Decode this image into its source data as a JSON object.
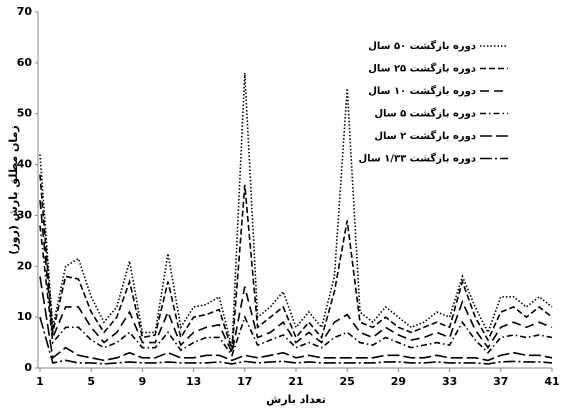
{
  "chart_data": {
    "type": "line",
    "y_label": "زمان مطلق بارش (روز)",
    "x_label": "تعداد بارش",
    "x": [
      1,
      2,
      3,
      4,
      5,
      6,
      7,
      8,
      9,
      10,
      11,
      12,
      13,
      14,
      15,
      16,
      17,
      18,
      19,
      20,
      21,
      22,
      23,
      24,
      25,
      26,
      27,
      28,
      29,
      30,
      31,
      32,
      33,
      34,
      35,
      36,
      37,
      38,
      39,
      40,
      41
    ],
    "xlim": [
      1,
      41
    ],
    "xticks": [
      1,
      5,
      9,
      13,
      17,
      21,
      25,
      29,
      33,
      37,
      41
    ],
    "ylim": [
      0,
      70
    ],
    "yticks": [
      0,
      10,
      20,
      30,
      40,
      50,
      60,
      70
    ],
    "grid": false,
    "legend": "top-right",
    "series": [
      {
        "name": "دوره بازگشت ۵۰ سال",
        "color": "#000000",
        "line_style": "dotted",
        "values": [
          42,
          8,
          20,
          21.5,
          14,
          9,
          12,
          21,
          7,
          7,
          22.5,
          8,
          12,
          12.5,
          14,
          4,
          58,
          10,
          12,
          15,
          8,
          11,
          8,
          18,
          55,
          11,
          9,
          12,
          10,
          8,
          9,
          11,
          10,
          18,
          12,
          7,
          14,
          14,
          12,
          14,
          12
        ]
      },
      {
        "name": "دوره بازگشت ۲۵ سال",
        "color": "#000000",
        "line_style": "dashed",
        "values": [
          38,
          7,
          18,
          17.5,
          11,
          7,
          10,
          17,
          6,
          6.5,
          17,
          6,
          10,
          10.5,
          11.5,
          3.5,
          36,
          8,
          10,
          12,
          6,
          9,
          6,
          15,
          29,
          9,
          8,
          10,
          8,
          7,
          8,
          9,
          8,
          17,
          10,
          5.5,
          11,
          12,
          10,
          12,
          10
        ]
      },
      {
        "name": "دوره بازگشت ۱۰ سال",
        "color": "#000000",
        "line_style": "long-dashed",
        "values": [
          33,
          6,
          12,
          12,
          8,
          5,
          7,
          11,
          5,
          5,
          11,
          4.5,
          7,
          8,
          8.5,
          3,
          16,
          6,
          7,
          9,
          5,
          7,
          5,
          9,
          10.5,
          7,
          6,
          8,
          6.5,
          5.5,
          6,
          7,
          6,
          13,
          7.5,
          4,
          8,
          9,
          8,
          9,
          8
        ]
      },
      {
        "name": "دوره بازگشت ۵ سال",
        "color": "#000000",
        "line_style": "dash-dot",
        "values": [
          28,
          5,
          8,
          8,
          5.5,
          4,
          5,
          7,
          4,
          4,
          7,
          3.5,
          5,
          6,
          6,
          2.5,
          10,
          4.5,
          5.5,
          6.5,
          4,
          5,
          4,
          6,
          7,
          5,
          4.5,
          6,
          5,
          4,
          4.5,
          5,
          4.5,
          9,
          5.5,
          3,
          6,
          6.5,
          6,
          6.5,
          6
        ]
      },
      {
        "name": "دوره بازگشت ۲ سال",
        "color": "#000000",
        "line_style": "long-dash",
        "values": [
          18,
          2,
          4,
          2.5,
          2,
          1.5,
          2,
          3,
          2,
          2,
          3,
          2,
          2,
          2.5,
          2.5,
          1.5,
          2.5,
          2,
          2.5,
          3,
          2,
          2.5,
          2,
          2,
          2,
          2,
          2,
          2.5,
          2.5,
          2,
          2,
          2.5,
          2,
          2,
          2,
          1.5,
          2.5,
          3,
          2.5,
          2.5,
          2
        ]
      },
      {
        "name": "دوره بازگشت ۱/۳۳ سال",
        "color": "#000000",
        "line_style": "long-dash-dot",
        "values": [
          10,
          1,
          1.5,
          1,
          1,
          0.8,
          1,
          1.2,
          1,
          1,
          1.2,
          1,
          1,
          1,
          1.2,
          0.8,
          1.3,
          1,
          1.2,
          1.3,
          1,
          1.2,
          1,
          1,
          1,
          1,
          1,
          1.2,
          1.2,
          1,
          1,
          1.2,
          1,
          1,
          1,
          0.8,
          1.2,
          1.3,
          1.2,
          1.2,
          1
        ]
      }
    ]
  }
}
